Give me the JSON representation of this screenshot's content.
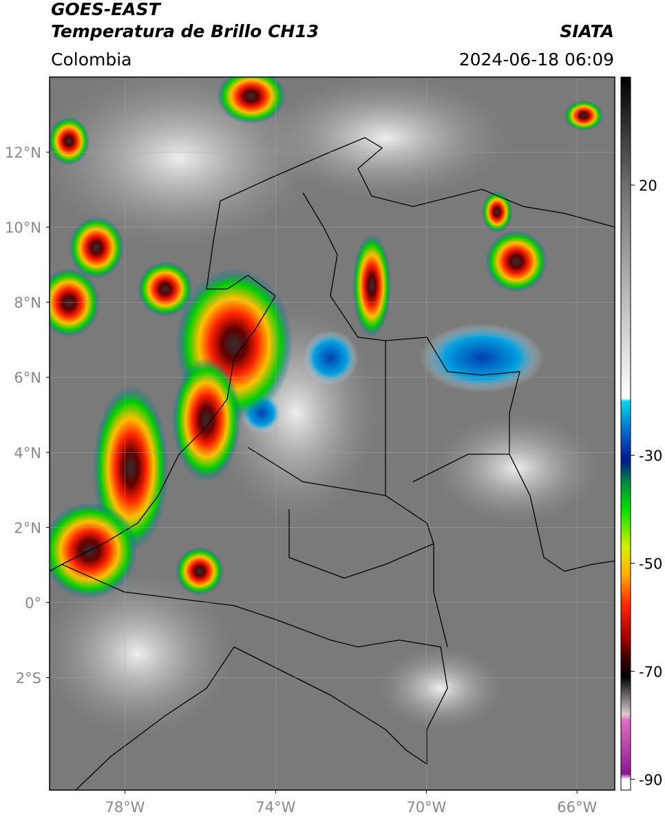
{
  "header": {
    "title": "GOES-EAST",
    "subtitle": "Temperatura de Brillo CH13",
    "region": "Colombia",
    "source": "SIATA",
    "datetime": "2024-06-18 06:09"
  },
  "map": {
    "xlim": [
      -80,
      -65
    ],
    "ylim": [
      -5,
      14
    ],
    "xticks": [
      {
        "value": -78,
        "label": "78°W"
      },
      {
        "value": -74,
        "label": "74°W"
      },
      {
        "value": -70,
        "label": "70°W"
      },
      {
        "value": -66,
        "label": "66°W"
      }
    ],
    "yticks": [
      {
        "value": 12,
        "label": "12°N"
      },
      {
        "value": 10,
        "label": "10°N"
      },
      {
        "value": 8,
        "label": "8°N"
      },
      {
        "value": 6,
        "label": "6°N"
      },
      {
        "value": 4,
        "label": "4°N"
      },
      {
        "value": 2,
        "label": "2°N"
      },
      {
        "value": 0,
        "label": "0°"
      },
      {
        "value": -2,
        "label": "2°S"
      }
    ],
    "grid": true
  },
  "colorbar": {
    "lim": [
      -92,
      40
    ],
    "ticks": [
      20,
      -30,
      -50,
      -70,
      -90
    ],
    "stops": [
      {
        "value": 40,
        "color": "#000000"
      },
      {
        "value": 20,
        "color": "#6e6e6e"
      },
      {
        "value": -19.5,
        "color": "#ffffff"
      },
      {
        "value": -20,
        "color": "#00d8f0"
      },
      {
        "value": -27,
        "color": "#0050c0"
      },
      {
        "value": -31,
        "color": "#001890"
      },
      {
        "value": -35,
        "color": "#008a40"
      },
      {
        "value": -40,
        "color": "#00e000"
      },
      {
        "value": -47,
        "color": "#d8f000"
      },
      {
        "value": -52,
        "color": "#ffb000"
      },
      {
        "value": -58,
        "color": "#ff2000"
      },
      {
        "value": -64,
        "color": "#a00000"
      },
      {
        "value": -68,
        "color": "#300000"
      },
      {
        "value": -71,
        "color": "#000000"
      },
      {
        "value": -78,
        "color": "#d8d0d0"
      },
      {
        "value": -79,
        "color": "#e070c0"
      },
      {
        "value": -89,
        "color": "#8a1890"
      },
      {
        "value": -90,
        "color": "#ffffff"
      }
    ]
  }
}
